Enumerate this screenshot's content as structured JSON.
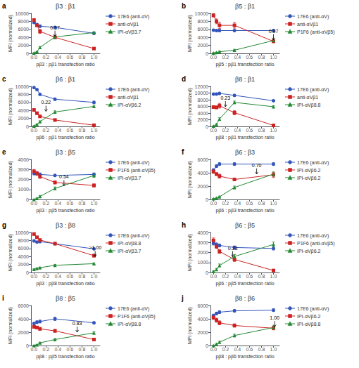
{
  "chart_data": [
    {
      "type": "line",
      "panel_label": "a",
      "title": "β3 : β1",
      "xlabel": "pβ3 : pβ1 transfection ratio",
      "ylabel": "MFI (normalized)",
      "xlim": [
        -0.05,
        1.1
      ],
      "xticks": [
        {
          "value": 0,
          "label": "0.0"
        },
        0.2,
        0.4,
        0.6,
        0.8,
        {
          "value": 1,
          "label": "1.0"
        }
      ],
      "ylim": [
        0,
        10000
      ],
      "yticks": [
        0,
        2000,
        4000,
        6000,
        8000,
        10000
      ],
      "grid": false,
      "annotations": [
        {
          "text": "0.37",
          "x": 0.35,
          "y": 4100
        }
      ],
      "x": [
        0.0,
        0.05,
        0.1,
        0.35,
        1.0
      ],
      "series": [
        {
          "name": "17E6 (anti-αV)",
          "color": "#3355bb",
          "marker": "circle",
          "values": [
            7700,
            7200,
            6800,
            6500,
            5000
          ],
          "yerr": [
            200,
            200,
            300,
            200,
            200
          ]
        },
        {
          "name": "anti-αVβ1",
          "color": "#cc2222",
          "marker": "square",
          "values": [
            8300,
            7000,
            5500,
            4000,
            1200
          ],
          "yerr": [
            400,
            300,
            500,
            300,
            200
          ]
        },
        {
          "name": "IPI-αVβ3.7",
          "color": "#228833",
          "marker": "triangle",
          "values": [
            100,
            400,
            1500,
            4100,
            5200
          ],
          "yerr": [
            50,
            100,
            200,
            300,
            200
          ]
        }
      ]
    },
    {
      "type": "line",
      "panel_label": "b",
      "title": "β5 : β1",
      "xlabel": "pβ5 : pβ1 transfection ratio",
      "ylabel": "MFI (normalized)",
      "xlim": [
        -0.05,
        1.1
      ],
      "xticks": [
        {
          "value": 0,
          "label": "0.0"
        },
        0.2,
        0.4,
        0.6,
        0.8,
        {
          "value": 1,
          "label": "1.0"
        }
      ],
      "ylim": [
        0,
        10000
      ],
      "yticks": [
        0,
        2000,
        4000,
        6000,
        8000,
        10000
      ],
      "grid": false,
      "annotations": [
        {
          "text": "0.97",
          "x": 1.0,
          "y": 3200
        }
      ],
      "x": [
        0.0,
        0.05,
        0.1,
        0.35,
        1.0
      ],
      "series": [
        {
          "name": "17E6 (anti-αV)",
          "color": "#3355bb",
          "marker": "circle",
          "values": [
            5800,
            5700,
            5700,
            5700,
            5700
          ],
          "yerr": [
            200,
            200,
            300,
            200,
            200
          ]
        },
        {
          "name": "anti-αVβ1",
          "color": "#cc2222",
          "marker": "square",
          "values": [
            9500,
            8000,
            7000,
            7000,
            3000
          ],
          "yerr": [
            400,
            600,
            800,
            700,
            300
          ]
        },
        {
          "name": "P1F6 (anti-αVβ5)",
          "color": "#228833",
          "marker": "triangle",
          "values": [
            100,
            200,
            400,
            800,
            3200
          ],
          "yerr": [
            50,
            100,
            200,
            200,
            300
          ]
        }
      ]
    },
    {
      "type": "line",
      "panel_label": "c",
      "title": "β6 : β1",
      "xlabel": "pβ6 : pβ1 transfection ratio",
      "ylabel": "MFI (normalized)",
      "xlim": [
        -0.05,
        1.1
      ],
      "xticks": [
        {
          "value": 0,
          "label": "0.0"
        },
        0.2,
        0.4,
        0.6,
        0.8,
        {
          "value": 1,
          "label": "1.0"
        }
      ],
      "ylim": [
        0,
        10000
      ],
      "yticks": [
        0,
        2000,
        4000,
        6000,
        8000,
        10000
      ],
      "grid": false,
      "annotations": [
        {
          "text": "0.22",
          "x": 0.2,
          "y": 3600
        }
      ],
      "x": [
        0.0,
        0.05,
        0.1,
        0.35,
        1.0
      ],
      "series": [
        {
          "name": "17E6 (anti-αV)",
          "color": "#3355bb",
          "marker": "circle",
          "values": [
            9700,
            9200,
            8000,
            6800,
            6000
          ],
          "yerr": [
            200,
            200,
            200,
            300,
            300
          ]
        },
        {
          "name": "anti-αVβ1",
          "color": "#cc2222",
          "marker": "square",
          "values": [
            4100,
            3300,
            2500,
            1600,
            300
          ],
          "yerr": [
            300,
            200,
            300,
            200,
            100
          ]
        },
        {
          "name": "IPI-αVβ6.2",
          "color": "#228833",
          "marker": "triangle",
          "values": [
            100,
            500,
            1200,
            3600,
            5000
          ],
          "yerr": [
            50,
            100,
            200,
            300,
            300
          ]
        }
      ]
    },
    {
      "type": "line",
      "panel_label": "d",
      "title": "β8 : β1",
      "xlabel": "pβ8 : pβ1 transfection ratio",
      "ylabel": "MFI (normalized)",
      "xlim": [
        -0.05,
        1.1
      ],
      "xticks": [
        {
          "value": 0,
          "label": "0.0"
        },
        0.2,
        0.4,
        0.6,
        0.8,
        {
          "value": 1,
          "label": "1.0"
        }
      ],
      "ylim": [
        0,
        12000
      ],
      "yticks": [
        0,
        2000,
        4000,
        6000,
        8000,
        10000,
        12000
      ],
      "grid": false,
      "annotations": [
        {
          "text": "0.23",
          "x": 0.2,
          "y": 5700
        }
      ],
      "x": [
        0.0,
        0.05,
        0.1,
        0.35,
        1.0
      ],
      "series": [
        {
          "name": "17E6 (anti-αV)",
          "color": "#3355bb",
          "marker": "circle",
          "values": [
            9700,
            9700,
            9900,
            9300,
            7700
          ],
          "yerr": [
            200,
            300,
            200,
            300,
            200
          ]
        },
        {
          "name": "anti-αVβ1",
          "color": "#cc2222",
          "marker": "square",
          "values": [
            5800,
            5700,
            6200,
            4100,
            300
          ],
          "yerr": [
            300,
            400,
            700,
            600,
            100
          ]
        },
        {
          "name": "IPI-αVβ8.8",
          "color": "#228833",
          "marker": "triangle",
          "values": [
            100,
            600,
            2200,
            7200,
            5900
          ],
          "yerr": [
            50,
            200,
            400,
            400,
            300
          ]
        }
      ]
    },
    {
      "type": "line",
      "panel_label": "e",
      "title": "β3 : β5",
      "xlabel": "pβ3 : pβ5 transfection ratio",
      "ylabel": "MFI (normalized)",
      "xlim": [
        -0.05,
        1.1
      ],
      "xticks": [
        {
          "value": 0,
          "label": "0.0"
        },
        0.2,
        0.4,
        0.6,
        0.8,
        {
          "value": 1,
          "label": "1.0"
        }
      ],
      "ylim": [
        0,
        4000
      ],
      "yticks": [
        0,
        1000,
        2000,
        3000,
        4000
      ],
      "grid": false,
      "annotations": [
        {
          "text": "0.54",
          "x": 0.5,
          "y": 1300
        }
      ],
      "x": [
        0.0,
        0.05,
        0.1,
        0.35,
        1.0
      ],
      "series": [
        {
          "name": "17E6 (anti-αV)",
          "color": "#3355bb",
          "marker": "circle",
          "values": [
            2600,
            2600,
            2500,
            2400,
            2500
          ],
          "yerr": [
            150,
            100,
            150,
            100,
            150
          ]
        },
        {
          "name": "P1F6 (anti-αVβ5)",
          "color": "#cc2222",
          "marker": "square",
          "values": [
            2800,
            2600,
            2300,
            1700,
            1400
          ],
          "yerr": [
            200,
            200,
            200,
            150,
            150
          ]
        },
        {
          "name": "IPI-αVβ3.7",
          "color": "#228833",
          "marker": "triangle",
          "values": [
            0,
            100,
            300,
            1100,
            2400
          ],
          "yerr": [
            0,
            50,
            100,
            150,
            200
          ]
        }
      ]
    },
    {
      "type": "line",
      "panel_label": "f",
      "title": "β6 : β3",
      "xlabel": "pβ6 : pβ3 transfection ratio",
      "ylabel": "MFI (normalized)",
      "xlim": [
        -0.05,
        1.1
      ],
      "xticks": [
        {
          "value": 0,
          "label": "0.0"
        },
        0.2,
        0.4,
        0.6,
        0.8,
        {
          "value": 1,
          "label": "1.0"
        }
      ],
      "ylim": [
        0,
        6000
      ],
      "yticks": [
        0,
        2000,
        4000,
        6000
      ],
      "grid": false,
      "annotations": [
        {
          "text": "0.70",
          "x": 0.72,
          "y": 3700
        }
      ],
      "x": [
        0.0,
        0.05,
        0.1,
        0.35,
        1.0
      ],
      "series": [
        {
          "name": "17E6 (anti-αV)",
          "color": "#3355bb",
          "marker": "circle",
          "values": [
            4400,
            5000,
            5300,
            5300,
            5300
          ],
          "yerr": [
            200,
            200,
            200,
            200,
            200
          ]
        },
        {
          "name": "IPI-αVβ6.2",
          "color": "#cc2222",
          "marker": "square",
          "values": [
            4200,
            3800,
            3500,
            3000,
            3700
          ],
          "yerr": [
            300,
            200,
            300,
            200,
            400
          ]
        },
        {
          "name": "IPI-αVβ6.2",
          "color": "#228833",
          "marker": "triangle",
          "values": [
            100,
            200,
            400,
            1800,
            3800
          ],
          "yerr": [
            50,
            50,
            100,
            200,
            300
          ]
        }
      ]
    },
    {
      "type": "line",
      "panel_label": "g",
      "title": "β3 : β8",
      "xlabel": "pβ3 : pβ8 transfection ratio",
      "ylabel": "MFI (normalized)",
      "xlim": [
        -0.05,
        1.1
      ],
      "xticks": [
        {
          "value": 0,
          "label": "0.0"
        },
        0.2,
        0.4,
        0.6,
        0.8,
        {
          "value": 1,
          "label": "1.0"
        }
      ],
      "ylim": [
        0,
        10000
      ],
      "yticks": [
        0,
        2000,
        4000,
        6000,
        8000,
        10000
      ],
      "grid": false,
      "annotations": [
        {
          "text": ">1.00",
          "x": 1.02,
          "y": 3800
        }
      ],
      "x": [
        0.0,
        0.05,
        0.1,
        0.35,
        1.0
      ],
      "series": [
        {
          "name": "17E6 (anti-αV)",
          "color": "#3355bb",
          "marker": "circle",
          "values": [
            7900,
            7600,
            7700,
            7200,
            5900
          ],
          "yerr": [
            200,
            200,
            200,
            200,
            200
          ]
        },
        {
          "name": "IPI-αVβ8.8",
          "color": "#cc2222",
          "marker": "square",
          "values": [
            9600,
            8800,
            8100,
            7200,
            4200
          ],
          "yerr": [
            300,
            200,
            300,
            300,
            300
          ]
        },
        {
          "name": "IPI-αVβ3.7",
          "color": "#228833",
          "marker": "triangle",
          "values": [
            800,
            1000,
            1200,
            1800,
            2200
          ],
          "yerr": [
            100,
            100,
            150,
            200,
            200
          ]
        }
      ]
    },
    {
      "type": "line",
      "panel_label": "h",
      "title": "β6 : β5",
      "xlabel": "pβ6 : pβ5 transfection ratio",
      "ylabel": "MFI (normalized)",
      "xlim": [
        -0.05,
        1.1
      ],
      "xticks": [
        {
          "value": 0,
          "label": "0.0"
        },
        0.2,
        0.4,
        0.6,
        0.8,
        {
          "value": 1,
          "label": "1.0"
        }
      ],
      "ylim": [
        0,
        4000
      ],
      "yticks": [
        0,
        1000,
        2000,
        3000,
        4000
      ],
      "grid": false,
      "annotations": [
        {
          "text": "0.33",
          "x": 0.32,
          "y": 1500
        }
      ],
      "x": [
        0.0,
        0.05,
        0.1,
        0.35,
        1.0
      ],
      "series": [
        {
          "name": "17E6 (anti-αV)",
          "color": "#3355bb",
          "marker": "circle",
          "values": [
            2900,
            2800,
            2700,
            2500,
            2400
          ],
          "yerr": [
            150,
            150,
            150,
            150,
            150
          ]
        },
        {
          "name": "P1F6 (anti-αVβ5)",
          "color": "#cc2222",
          "marker": "square",
          "values": [
            3200,
            2600,
            2100,
            1300,
            200
          ],
          "yerr": [
            250,
            200,
            200,
            200,
            100
          ]
        },
        {
          "name": "IPI-αVβ6.2",
          "color": "#228833",
          "marker": "triangle",
          "values": [
            100,
            300,
            700,
            1600,
            2800
          ],
          "yerr": [
            50,
            100,
            150,
            200,
            250
          ]
        }
      ]
    },
    {
      "type": "line",
      "panel_label": "i",
      "title": "β8 : β5",
      "xlabel": "pβ8 : pβ5 transfection ratio",
      "ylabel": "MFI (normalized)",
      "xlim": [
        -0.05,
        1.1
      ],
      "xticks": [
        {
          "value": 0,
          "label": "0.0"
        },
        0.2,
        0.4,
        0.6,
        0.8,
        {
          "value": 1,
          "label": "1.0"
        }
      ],
      "ylim": [
        0,
        6000
      ],
      "yticks": [
        0,
        2000,
        4000,
        6000
      ],
      "grid": false,
      "annotations": [
        {
          "text": "0.83",
          "x": 0.72,
          "y": 1900
        }
      ],
      "x": [
        0.0,
        0.05,
        0.1,
        0.35,
        1.0
      ],
      "series": [
        {
          "name": "17E6 (anti-αV)",
          "color": "#3355bb",
          "marker": "circle",
          "values": [
            3300,
            3500,
            3600,
            4000,
            3400
          ],
          "yerr": [
            150,
            200,
            200,
            250,
            150
          ]
        },
        {
          "name": "P1F6 (anti-αVβ5)",
          "color": "#cc2222",
          "marker": "square",
          "values": [
            2800,
            2700,
            2500,
            2200,
            900
          ],
          "yerr": [
            200,
            200,
            200,
            200,
            150
          ]
        },
        {
          "name": "IPI-αVβ8.8",
          "color": "#228833",
          "marker": "triangle",
          "values": [
            0,
            100,
            400,
            900,
            1900
          ],
          "yerr": [
            0,
            50,
            100,
            150,
            200
          ]
        }
      ]
    },
    {
      "type": "line",
      "panel_label": "j",
      "title": "β8 : β6",
      "xlabel": "pβ8 : pβ6 transfection ratio",
      "ylabel": "MFI (normalized)",
      "xlim": [
        -0.05,
        1.1
      ],
      "xticks": [
        {
          "value": 0,
          "label": "0.0"
        },
        0.2,
        0.4,
        0.6,
        0.8,
        {
          "value": 1,
          "label": "1.0"
        }
      ],
      "ylim": [
        0,
        6000
      ],
      "yticks": [
        0,
        2000,
        4000,
        6000
      ],
      "grid": false,
      "annotations": [
        {
          "text": "1.00",
          "x": 1.02,
          "y": 2700
        }
      ],
      "x": [
        0.0,
        0.05,
        0.1,
        0.35,
        1.0
      ],
      "series": [
        {
          "name": "17E6 (anti-αV)",
          "color": "#3355bb",
          "marker": "circle",
          "values": [
            4500,
            4800,
            5000,
            5200,
            5300
          ],
          "yerr": [
            200,
            200,
            200,
            200,
            200
          ]
        },
        {
          "name": "IPI-αVβ6.2",
          "color": "#cc2222",
          "marker": "square",
          "values": [
            4200,
            3800,
            3400,
            3000,
            2600
          ],
          "yerr": [
            300,
            300,
            300,
            250,
            250
          ]
        },
        {
          "name": "IPI-αVβ8.8",
          "color": "#228833",
          "marker": "triangle",
          "values": [
            0,
            200,
            500,
            1500,
            2700
          ],
          "yerr": [
            0,
            100,
            150,
            200,
            250
          ]
        }
      ]
    }
  ]
}
